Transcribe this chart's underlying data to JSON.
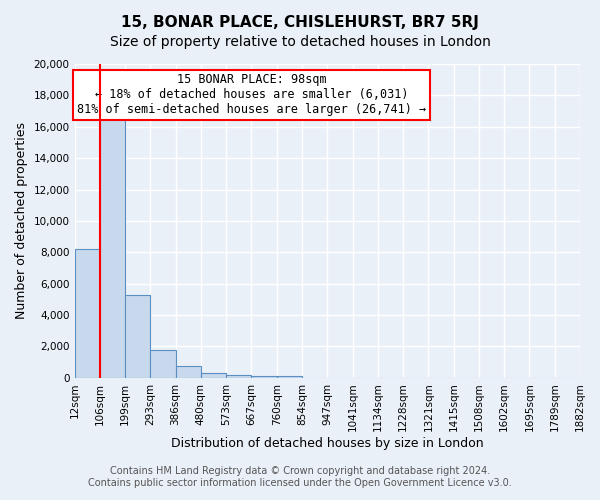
{
  "title": "15, BONAR PLACE, CHISLEHURST, BR7 5RJ",
  "subtitle": "Size of property relative to detached houses in London",
  "xlabel": "Distribution of detached houses by size in London",
  "ylabel": "Number of detached properties",
  "bin_labels": [
    "12sqm",
    "106sqm",
    "199sqm",
    "293sqm",
    "386sqm",
    "480sqm",
    "573sqm",
    "667sqm",
    "760sqm",
    "854sqm",
    "947sqm",
    "1041sqm",
    "1134sqm",
    "1228sqm",
    "1321sqm",
    "1415sqm",
    "1508sqm",
    "1602sqm",
    "1695sqm",
    "1789sqm",
    "1882sqm"
  ],
  "bar_heights": [
    8200,
    16600,
    5300,
    1750,
    750,
    300,
    200,
    100,
    100,
    0,
    0,
    0,
    0,
    0,
    0,
    0,
    0,
    0,
    0,
    0
  ],
  "bar_color": "#c9d9ed",
  "bar_edge_color": "#5a8fc3",
  "red_line_x": 1,
  "red_line_value": 98,
  "ylim": [
    0,
    20000
  ],
  "yticks": [
    0,
    2000,
    4000,
    6000,
    8000,
    10000,
    12000,
    14000,
    16000,
    18000,
    20000
  ],
  "annotation_box_text": "15 BONAR PLACE: 98sqm\n← 18% of detached houses are smaller (6,031)\n81% of semi-detached houses are larger (26,741) →",
  "footer_line1": "Contains HM Land Registry data © Crown copyright and database right 2024.",
  "footer_line2": "Contains public sector information licensed under the Open Government Licence v3.0.",
  "background_color": "#eaf0f8",
  "plot_bg_color": "#eaf0f8",
  "grid_color": "#ffffff",
  "title_fontsize": 11,
  "subtitle_fontsize": 10,
  "axis_label_fontsize": 9,
  "tick_fontsize": 7.5,
  "annotation_fontsize": 8.5,
  "footer_fontsize": 7
}
